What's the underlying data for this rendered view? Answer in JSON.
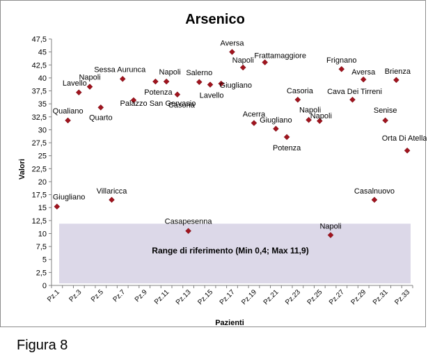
{
  "chart_data": {
    "type": "scatter",
    "title": "Arsenico",
    "xlabel": "Pazienti",
    "ylabel": "Valori",
    "ylim": [
      0,
      47.5
    ],
    "y_ticks": [
      "0",
      "2,5",
      "5",
      "7,5",
      "10",
      "12,5",
      "15",
      "17,5",
      "20",
      "22,5",
      "25",
      "27,5",
      "30",
      "32,5",
      "35",
      "37,5",
      "40",
      "42,5",
      "45",
      "47,5"
    ],
    "x_ticks": [
      "Pz.1",
      "Pz.3",
      "Pz.5",
      "Pz.7",
      "Pz.9",
      "Pz.11",
      "Pz.13",
      "Pz.15",
      "Pz.17",
      "Pz.19",
      "Pz.21",
      "Pz.23",
      "Pz.25",
      "Pz.27",
      "Pz.29",
      "Pz.31",
      "Pz.33"
    ],
    "grid": false,
    "marker_color": "#a0141e",
    "reference_band": {
      "min": 0.4,
      "max": 11.9,
      "color": "#dcd8e8",
      "label": "Range di riferimento  (Min 0,4; Max 11,9)"
    },
    "points": [
      {
        "x": 1,
        "y": 15.2,
        "label": "Giugliano"
      },
      {
        "x": 2,
        "y": 31.8,
        "label": "Qualiano"
      },
      {
        "x": 3,
        "y": 37.2,
        "label": "Lavello"
      },
      {
        "x": 4,
        "y": 38.3,
        "label": "Napoli"
      },
      {
        "x": 5,
        "y": 34.3,
        "label": "Quarto"
      },
      {
        "x": 6,
        "y": 16.5,
        "label": "Villaricca"
      },
      {
        "x": 7,
        "y": 39.8,
        "label": "Sessa Aurunca"
      },
      {
        "x": 8,
        "y": 35.7,
        "label": "Palazzo San Gervasio"
      },
      {
        "x": 10,
        "y": 39.3,
        "label": "Potenza"
      },
      {
        "x": 11,
        "y": 39.3,
        "label": "Napoli"
      },
      {
        "x": 12,
        "y": 36.8,
        "label": "Casoria"
      },
      {
        "x": 13,
        "y": 10.5,
        "label": "Casapesenna"
      },
      {
        "x": 14,
        "y": 39.2,
        "label": "Salerno"
      },
      {
        "x": 15,
        "y": 38.7,
        "label": "Lavello"
      },
      {
        "x": 16,
        "y": 38.9,
        "label": "Giugliano"
      },
      {
        "x": 17,
        "y": 45.0,
        "label": "Aversa"
      },
      {
        "x": 18,
        "y": 42.0,
        "label": "Napoli"
      },
      {
        "x": 19,
        "y": 31.3,
        "label": "Acerra"
      },
      {
        "x": 20,
        "y": 43.0,
        "label": "Frattamaggiore"
      },
      {
        "x": 21,
        "y": 30.2,
        "label": "Giugliano"
      },
      {
        "x": 22,
        "y": 28.6,
        "label": "Potenza"
      },
      {
        "x": 23,
        "y": 35.8,
        "label": "Casoria"
      },
      {
        "x": 24,
        "y": 31.9,
        "label": "Napoli"
      },
      {
        "x": 25,
        "y": 31.7,
        "label": "Napoli"
      },
      {
        "x": 26,
        "y": 9.7,
        "label": "Napoli"
      },
      {
        "x": 27,
        "y": 41.7,
        "label": "Frignano"
      },
      {
        "x": 28,
        "y": 35.8,
        "label": "Cava Dei Tirreni"
      },
      {
        "x": 29,
        "y": 39.7,
        "label": "Aversa"
      },
      {
        "x": 30,
        "y": 16.5,
        "label": "Casalnuovo"
      },
      {
        "x": 31,
        "y": 31.8,
        "label": "Senise"
      },
      {
        "x": 32,
        "y": 39.6,
        "label": "Brienza"
      },
      {
        "x": 33,
        "y": 26.0,
        "label": "Orta Di Atella"
      }
    ]
  },
  "caption": "Figura 8"
}
